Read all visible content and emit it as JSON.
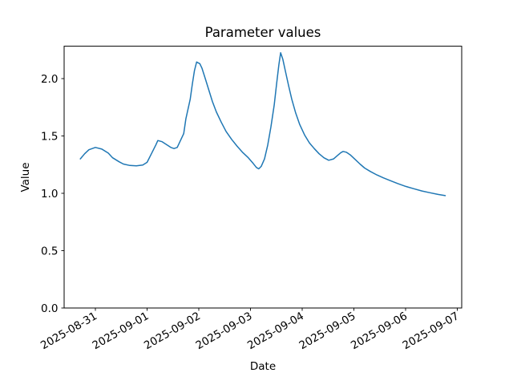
{
  "chart_data": {
    "type": "line",
    "title": "Parameter values",
    "xlabel": "Date",
    "ylabel": "Value",
    "line_color": "#1f77b4",
    "line_width": 1.5,
    "grid": false,
    "legend": "none",
    "background_color": "#ffffff",
    "axis_color": "#000000",
    "x_tick_labels": [
      "2025-08-31",
      "2025-09-01",
      "2025-09-02",
      "2025-09-03",
      "2025-09-04",
      "2025-09-05",
      "2025-09-06",
      "2025-09-07"
    ],
    "x_tick_rotation_deg": 30,
    "y_ticks": [
      0.0,
      0.5,
      1.0,
      1.5,
      2.0
    ],
    "y_tick_labels": [
      "0.0",
      "0.5",
      "1.0",
      "1.5",
      "2.0"
    ],
    "ylim": [
      0.0,
      2.28
    ],
    "xlim_days_from_first_tick": [
      -0.605,
      7.085
    ],
    "series_name": "Parameter values",
    "points": [
      [
        "2025-08-30T17:00",
        1.3
      ],
      [
        "2025-08-30T19:00",
        1.345
      ],
      [
        "2025-08-30T21:00",
        1.38
      ],
      [
        "2025-08-31T00:00",
        1.4
      ],
      [
        "2025-08-31T03:00",
        1.385
      ],
      [
        "2025-08-31T06:00",
        1.35
      ],
      [
        "2025-08-31T08:00",
        1.31
      ],
      [
        "2025-08-31T11:00",
        1.275
      ],
      [
        "2025-08-31T13:00",
        1.255
      ],
      [
        "2025-08-31T16:00",
        1.243
      ],
      [
        "2025-08-31T19:00",
        1.24
      ],
      [
        "2025-08-31T22:00",
        1.246
      ],
      [
        "2025-09-01T00:00",
        1.27
      ],
      [
        "2025-09-01T02:00",
        1.345
      ],
      [
        "2025-09-01T04:00",
        1.42
      ],
      [
        "2025-09-01T05:00",
        1.46
      ],
      [
        "2025-09-01T07:00",
        1.45
      ],
      [
        "2025-09-01T09:00",
        1.425
      ],
      [
        "2025-09-01T11:00",
        1.4
      ],
      [
        "2025-09-01T12:30",
        1.39
      ],
      [
        "2025-09-01T14:00",
        1.4
      ],
      [
        "2025-09-01T15:00",
        1.44
      ],
      [
        "2025-09-01T17:00",
        1.52
      ],
      [
        "2025-09-01T18:00",
        1.65
      ],
      [
        "2025-09-01T20:00",
        1.82
      ],
      [
        "2025-09-01T21:00",
        1.95
      ],
      [
        "2025-09-01T22:00",
        2.07
      ],
      [
        "2025-09-01T23:00",
        2.145
      ],
      [
        "2025-09-02T00:30",
        2.13
      ],
      [
        "2025-09-02T01:30",
        2.09
      ],
      [
        "2025-09-02T03:00",
        2.0
      ],
      [
        "2025-09-02T04:30",
        1.91
      ],
      [
        "2025-09-02T06:20",
        1.8
      ],
      [
        "2025-09-02T08:10",
        1.71
      ],
      [
        "2025-09-02T10:25",
        1.62
      ],
      [
        "2025-09-02T12:40",
        1.54
      ],
      [
        "2025-09-02T15:15",
        1.47
      ],
      [
        "2025-09-02T17:50",
        1.41
      ],
      [
        "2025-09-02T20:25",
        1.355
      ],
      [
        "2025-09-02T23:00",
        1.31
      ],
      [
        "2025-09-03T01:15",
        1.26
      ],
      [
        "2025-09-03T02:45",
        1.225
      ],
      [
        "2025-09-03T03:50",
        1.213
      ],
      [
        "2025-09-03T05:00",
        1.235
      ],
      [
        "2025-09-03T06:30",
        1.3
      ],
      [
        "2025-09-03T08:00",
        1.42
      ],
      [
        "2025-09-03T09:30",
        1.58
      ],
      [
        "2025-09-03T11:00",
        1.77
      ],
      [
        "2025-09-03T12:05",
        1.95
      ],
      [
        "2025-09-03T13:10",
        2.12
      ],
      [
        "2025-09-03T14:00",
        2.225
      ],
      [
        "2025-09-03T15:00",
        2.17
      ],
      [
        "2025-09-03T16:10",
        2.07
      ],
      [
        "2025-09-03T17:40",
        1.94
      ],
      [
        "2025-09-03T19:10",
        1.82
      ],
      [
        "2025-09-03T21:00",
        1.7
      ],
      [
        "2025-09-03T22:50",
        1.6
      ],
      [
        "2025-09-04T01:05",
        1.51
      ],
      [
        "2025-09-04T03:20",
        1.44
      ],
      [
        "2025-09-04T05:35",
        1.39
      ],
      [
        "2025-09-04T07:50",
        1.345
      ],
      [
        "2025-09-04T10:05",
        1.31
      ],
      [
        "2025-09-04T12:20",
        1.288
      ],
      [
        "2025-09-04T14:35",
        1.3
      ],
      [
        "2025-09-04T16:25",
        1.33
      ],
      [
        "2025-09-04T18:00",
        1.355
      ],
      [
        "2025-09-04T19:00",
        1.365
      ],
      [
        "2025-09-04T20:30",
        1.358
      ],
      [
        "2025-09-04T22:20",
        1.335
      ],
      [
        "2025-09-05T00:35",
        1.295
      ],
      [
        "2025-09-05T02:50",
        1.255
      ],
      [
        "2025-09-05T05:00",
        1.22
      ],
      [
        "2025-09-05T07:40",
        1.19
      ],
      [
        "2025-09-05T10:40",
        1.16
      ],
      [
        "2025-09-05T13:40",
        1.135
      ],
      [
        "2025-09-05T17:00",
        1.11
      ],
      [
        "2025-09-05T20:20",
        1.085
      ],
      [
        "2025-09-06T00:05",
        1.06
      ],
      [
        "2025-09-06T03:50",
        1.04
      ],
      [
        "2025-09-06T07:35",
        1.02
      ],
      [
        "2025-09-06T11:20",
        1.005
      ],
      [
        "2025-09-06T15:05",
        0.99
      ],
      [
        "2025-09-06T18:25",
        0.98
      ]
    ]
  }
}
